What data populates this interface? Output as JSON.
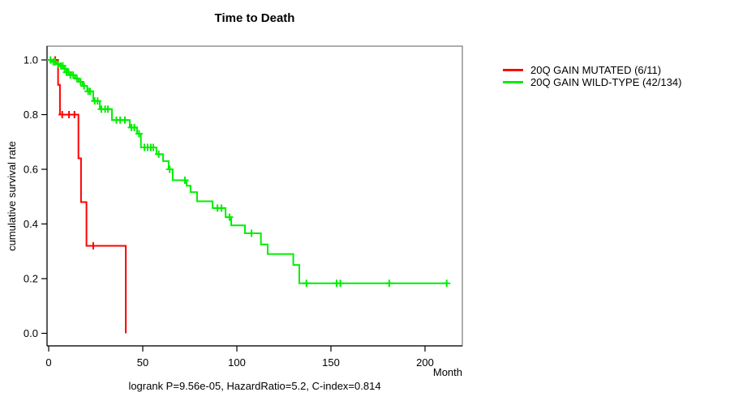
{
  "chart_data": {
    "type": "line",
    "subtype": "kaplan-meier-step",
    "title": "Time to Death",
    "xlabel": "Month",
    "ylabel": "cumulative survival rate",
    "footer": "logrank P=9.56e-05, HazardRatio=5.2, C-index=0.814",
    "xlim": [
      0,
      219
    ],
    "ylim": [
      0.0,
      1.0
    ],
    "x_ticks": [
      0,
      50,
      100,
      150,
      200
    ],
    "y_ticks": [
      {
        "label": "1.0",
        "value": 1.0
      },
      {
        "label": "0.8",
        "value": 0.8
      },
      {
        "label": "0.6",
        "value": 0.6
      },
      {
        "label": "0.4",
        "value": 0.4
      },
      {
        "label": "0.2",
        "value": 0.2
      },
      {
        "label": "0.0",
        "value": 0.0
      }
    ],
    "grid": "off",
    "legend_position": "right-outside",
    "colors": {
      "mutated": "#ff0000",
      "wildtype": "#00ee00",
      "axis": "#000000",
      "box": "#787878"
    },
    "series": [
      {
        "name": "20Q GAIN MUTATED (6/11)",
        "key": "mutated",
        "color": "#ff0000",
        "steps": [
          [
            0,
            1.0
          ],
          [
            5,
            0.909
          ],
          [
            6,
            0.8
          ],
          [
            15.8,
            0.64
          ],
          [
            17.2,
            0.48
          ],
          [
            20.1,
            0.32
          ],
          [
            41,
            0.0
          ]
        ],
        "end_month": 41,
        "censor_marks": [
          [
            3.5,
            1.0
          ],
          [
            7.2,
            0.8
          ],
          [
            10.8,
            0.8
          ],
          [
            13.7,
            0.8
          ],
          [
            23.7,
            0.32
          ]
        ]
      },
      {
        "name": "20Q GAIN WILD-TYPE (42/134)",
        "key": "wildtype",
        "color": "#00ee00",
        "steps": [
          [
            0,
            1.0
          ],
          [
            2,
            0.993
          ],
          [
            4,
            0.985
          ],
          [
            6,
            0.978
          ],
          [
            8,
            0.968
          ],
          [
            10,
            0.955
          ],
          [
            12,
            0.945
          ],
          [
            14,
            0.932
          ],
          [
            16,
            0.92
          ],
          [
            18,
            0.905
          ],
          [
            20.5,
            0.885
          ],
          [
            23.7,
            0.85
          ],
          [
            27.2,
            0.82
          ],
          [
            33.6,
            0.78
          ],
          [
            43.1,
            0.753
          ],
          [
            47,
            0.73
          ],
          [
            49,
            0.68
          ],
          [
            57.3,
            0.655
          ],
          [
            60.8,
            0.63
          ],
          [
            63.8,
            0.6
          ],
          [
            65.9,
            0.56
          ],
          [
            73.3,
            0.54
          ],
          [
            75.4,
            0.516
          ],
          [
            78.9,
            0.483
          ],
          [
            87.1,
            0.458
          ],
          [
            94,
            0.425
          ],
          [
            97,
            0.395
          ],
          [
            104.3,
            0.366
          ],
          [
            112.8,
            0.325
          ],
          [
            116.4,
            0.29
          ],
          [
            130,
            0.25
          ],
          [
            133.2,
            0.183
          ]
        ],
        "end_month": 212,
        "censor_marks": [
          [
            1,
            1.0
          ],
          [
            2.5,
            0.993
          ],
          [
            3.5,
            0.993
          ],
          [
            5,
            0.985
          ],
          [
            6.5,
            0.978
          ],
          [
            7.5,
            0.978
          ],
          [
            8.5,
            0.968
          ],
          [
            9.5,
            0.955
          ],
          [
            10.5,
            0.955
          ],
          [
            11.5,
            0.945
          ],
          [
            13,
            0.945
          ],
          [
            15,
            0.932
          ],
          [
            17,
            0.92
          ],
          [
            18.8,
            0.905
          ],
          [
            21,
            0.885
          ],
          [
            22,
            0.885
          ],
          [
            24.5,
            0.85
          ],
          [
            26,
            0.85
          ],
          [
            28,
            0.82
          ],
          [
            30,
            0.82
          ],
          [
            31.5,
            0.82
          ],
          [
            36,
            0.78
          ],
          [
            38,
            0.78
          ],
          [
            40.5,
            0.78
          ],
          [
            44,
            0.753
          ],
          [
            45.5,
            0.753
          ],
          [
            48,
            0.73
          ],
          [
            50.9,
            0.68
          ],
          [
            52.6,
            0.68
          ],
          [
            54.3,
            0.68
          ],
          [
            55.6,
            0.68
          ],
          [
            58.5,
            0.655
          ],
          [
            64.3,
            0.6
          ],
          [
            72.4,
            0.56
          ],
          [
            89.7,
            0.458
          ],
          [
            91.8,
            0.458
          ],
          [
            96.1,
            0.425
          ],
          [
            107.8,
            0.366
          ],
          [
            137,
            0.183
          ],
          [
            153,
            0.183
          ],
          [
            155,
            0.183
          ],
          [
            181,
            0.183
          ],
          [
            211.5,
            0.183
          ]
        ]
      }
    ]
  }
}
